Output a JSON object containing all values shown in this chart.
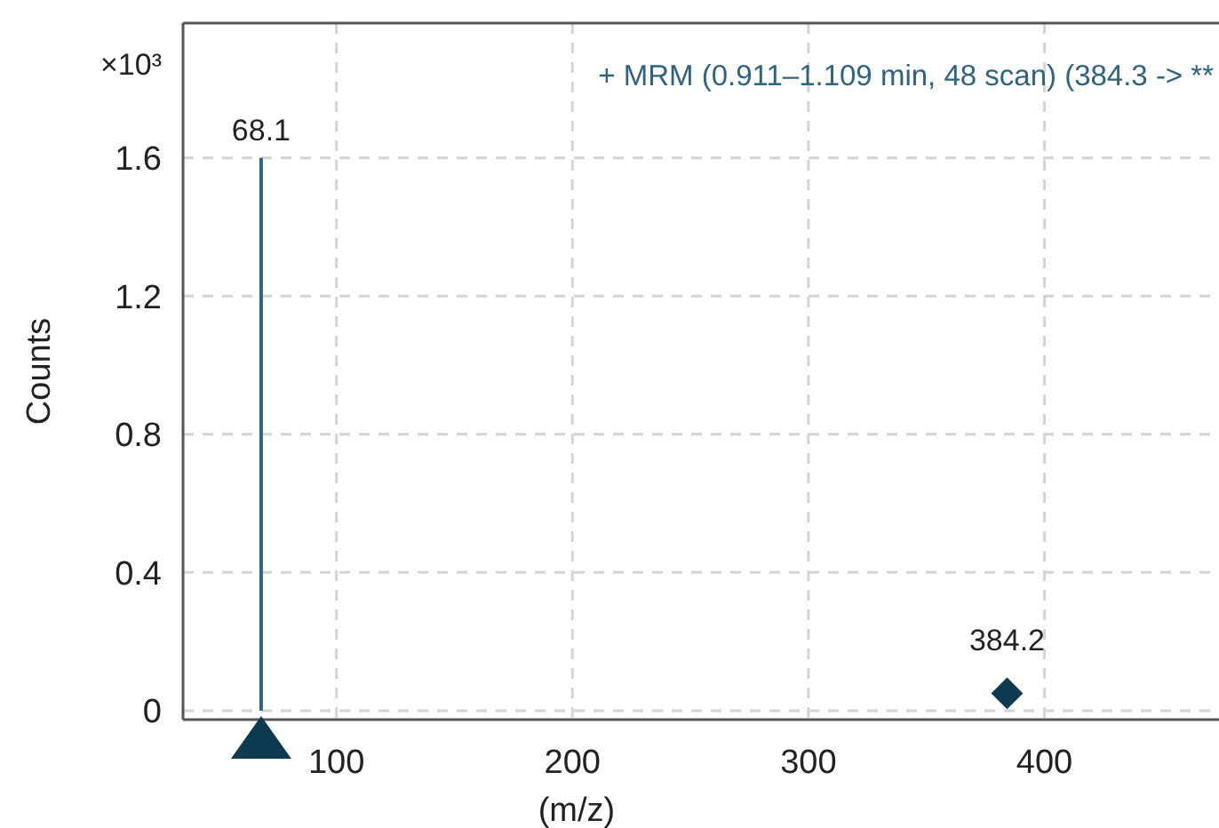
{
  "chart_data": {
    "type": "bar",
    "title": "+ MRM (0.911–1.109 min, 48 scan) (384.3 -> **",
    "xlabel": "(m/z)",
    "ylabel": "Counts",
    "annotations": [
      "×10³",
      {
        "text": "68.1",
        "x": 68.1,
        "y": 1.6
      },
      {
        "text": "384.2",
        "x": 384.2,
        "y": 0.05
      }
    ],
    "xlim": [
      35,
      474
    ],
    "xticks": [
      100,
      200,
      300,
      400
    ],
    "ylim": [
      -0.026,
      1.99
    ],
    "yticks": [
      0,
      0.4,
      0.8,
      1.2,
      1.6
    ],
    "grid": true,
    "series": [
      {
        "x": [
          68.1
        ],
        "values": [
          1.6
        ],
        "color": "#2e6480"
      },
      {
        "type": "scatter",
        "x": [
          384.2
        ],
        "values": [
          0.05
        ],
        "color": "#0d3a50",
        "marker": "diamond"
      }
    ]
  }
}
